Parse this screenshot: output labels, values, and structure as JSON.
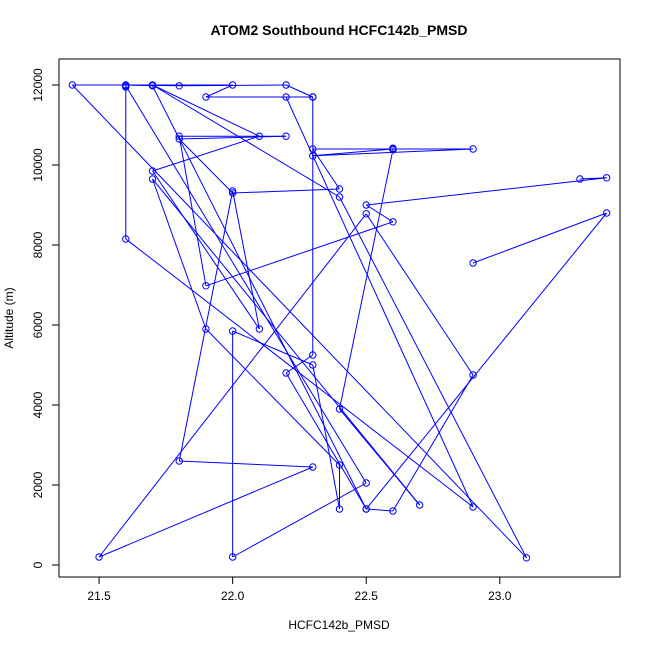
{
  "chart_data": {
    "type": "line",
    "title": "ATOM2 Southbound HCFC142b_PMSD",
    "xlabel": "HCFC142b_PMSD",
    "ylabel": "Altitude (m)",
    "xlim": [
      21.35,
      23.45
    ],
    "ylim": [
      -300,
      12650
    ],
    "x_ticks": [
      21.5,
      22.0,
      22.5,
      23.0
    ],
    "x_tick_labels": [
      "21.5",
      "22.0",
      "22.5",
      "23.0"
    ],
    "y_ticks": [
      0,
      2000,
      4000,
      6000,
      8000,
      10000,
      12000
    ],
    "y_tick_labels": [
      "0",
      "2000",
      "4000",
      "6000",
      "8000",
      "10000",
      "12000"
    ],
    "grid": false,
    "legend": "none",
    "line_color": "#0000ff",
    "series": [
      {
        "points": [
          [
            23.3,
            9650
          ],
          [
            23.4,
            9680
          ],
          [
            22.5,
            9000
          ],
          [
            22.6,
            8580
          ],
          [
            21.9,
            6980
          ],
          [
            21.8,
            10720
          ],
          [
            22.2,
            10720
          ],
          [
            21.8,
            10650
          ],
          [
            22.0,
            9300
          ],
          [
            22.4,
            9400
          ],
          [
            22.3,
            10400
          ],
          [
            22.9,
            10400
          ],
          [
            22.3,
            10230
          ],
          [
            22.6,
            10400
          ],
          [
            22.6,
            10420
          ],
          [
            22.6,
            10380
          ],
          [
            22.4,
            3900
          ],
          [
            22.7,
            1500
          ],
          [
            21.7,
            9650
          ],
          [
            21.9,
            5900
          ],
          [
            22.4,
            2500
          ],
          [
            22.4,
            1400
          ],
          [
            22.3,
            5000
          ],
          [
            22.0,
            5850
          ],
          [
            22.0,
            200
          ],
          [
            22.5,
            2050
          ],
          [
            21.6,
            11980
          ],
          [
            21.6,
            11950
          ],
          [
            21.6,
            8150
          ],
          [
            22.9,
            1450
          ],
          [
            22.2,
            11700
          ],
          [
            22.3,
            11700
          ],
          [
            22.2,
            12000
          ],
          [
            21.8,
            11980
          ],
          [
            21.6,
            12000
          ],
          [
            21.7,
            11980
          ],
          [
            22.5,
            1400
          ],
          [
            22.6,
            1350
          ],
          [
            22.9,
            4750
          ],
          [
            22.5,
            8780
          ],
          [
            21.5,
            200
          ],
          [
            22.3,
            2450
          ],
          [
            21.8,
            2600
          ],
          [
            22.0,
            9350
          ],
          [
            22.1,
            5900
          ],
          [
            21.7,
            9850
          ],
          [
            22.1,
            10720
          ],
          [
            21.7,
            12000
          ],
          [
            22.4,
            9200
          ],
          [
            23.1,
            180
          ],
          [
            21.4,
            12000
          ],
          [
            22.0,
            12000
          ],
          [
            21.9,
            11700
          ],
          [
            22.3,
            11700
          ],
          [
            22.3,
            5250
          ],
          [
            22.2,
            4800
          ],
          [
            22.5,
            1400
          ],
          [
            23.4,
            8800
          ],
          [
            22.9,
            7550
          ]
        ]
      }
    ]
  }
}
